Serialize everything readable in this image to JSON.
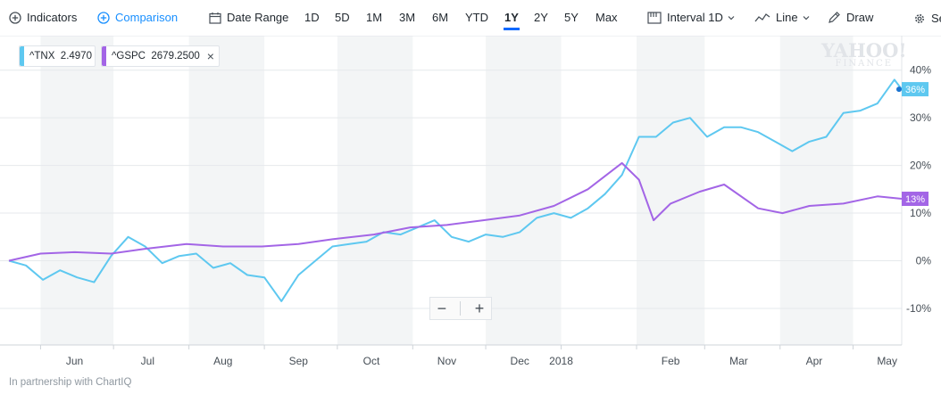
{
  "toolbar": {
    "indicators": "Indicators",
    "comparison": "Comparison",
    "date_range": "Date Range",
    "ranges": [
      "1D",
      "5D",
      "1M",
      "3M",
      "6M",
      "YTD",
      "1Y",
      "2Y",
      "5Y",
      "Max"
    ],
    "active_range": "1Y",
    "interval": "Interval",
    "interval_value": "1D",
    "chart_type": "Line",
    "draw": "Draw",
    "settings": "Se"
  },
  "legend": [
    {
      "symbol": "^TNX",
      "value": "2.4970",
      "color": "#5ec8f0"
    },
    {
      "symbol": "^GSPC",
      "value": "2679.2500",
      "color": "#a365e6"
    }
  ],
  "watermark": {
    "line1": "YAHOO!",
    "line2": "FINANCE"
  },
  "zoom": {
    "minus": "−",
    "plus": "+"
  },
  "footer": "In partnership with ChartIQ",
  "chart_data": {
    "type": "line",
    "x_tick_labels": [
      "Jun",
      "Jul",
      "Aug",
      "Sep",
      "Oct",
      "Nov",
      "Dec",
      "2018",
      "Feb",
      "Mar",
      "Apr",
      "May"
    ],
    "y_tick_labels": [
      "40%",
      "30%",
      "20%",
      "10%",
      "0%",
      "-10%"
    ],
    "y_ticks": [
      40,
      30,
      20,
      10,
      0,
      -10
    ],
    "ylim": [
      -18,
      46
    ],
    "xlim": [
      "2017-05-19",
      "2018-05-21"
    ],
    "grid": true,
    "series": [
      {
        "name": "^TNX",
        "color": "#5ec8f0",
        "end_label": "36%",
        "points": [
          [
            "2017-05-19",
            0
          ],
          [
            "2017-05-26",
            -1
          ],
          [
            "2017-06-02",
            -4
          ],
          [
            "2017-06-09",
            -2
          ],
          [
            "2017-06-16",
            -3.5
          ],
          [
            "2017-06-23",
            -4.5
          ],
          [
            "2017-06-30",
            1
          ],
          [
            "2017-07-07",
            5
          ],
          [
            "2017-07-14",
            3
          ],
          [
            "2017-07-21",
            -0.5
          ],
          [
            "2017-07-28",
            1
          ],
          [
            "2017-08-04",
            1.5
          ],
          [
            "2017-08-11",
            -1.5
          ],
          [
            "2017-08-18",
            -0.5
          ],
          [
            "2017-08-25",
            -3
          ],
          [
            "2017-09-01",
            -3.5
          ],
          [
            "2017-09-08",
            -8.5
          ],
          [
            "2017-09-15",
            -3
          ],
          [
            "2017-09-22",
            0
          ],
          [
            "2017-09-29",
            3
          ],
          [
            "2017-10-06",
            3.5
          ],
          [
            "2017-10-13",
            4
          ],
          [
            "2017-10-20",
            6
          ],
          [
            "2017-10-27",
            5.5
          ],
          [
            "2017-11-03",
            7
          ],
          [
            "2017-11-10",
            8.5
          ],
          [
            "2017-11-17",
            5
          ],
          [
            "2017-11-24",
            4
          ],
          [
            "2017-12-01",
            5.5
          ],
          [
            "2017-12-08",
            5
          ],
          [
            "2017-12-15",
            6
          ],
          [
            "2017-12-22",
            9
          ],
          [
            "2017-12-29",
            10
          ],
          [
            "2018-01-05",
            9
          ],
          [
            "2018-01-12",
            11
          ],
          [
            "2018-01-19",
            14
          ],
          [
            "2018-01-26",
            18
          ],
          [
            "2018-02-02",
            26
          ],
          [
            "2018-02-09",
            26
          ],
          [
            "2018-02-16",
            29
          ],
          [
            "2018-02-23",
            30
          ],
          [
            "2018-03-02",
            26
          ],
          [
            "2018-03-09",
            28
          ],
          [
            "2018-03-16",
            28
          ],
          [
            "2018-03-23",
            27
          ],
          [
            "2018-03-30",
            25
          ],
          [
            "2018-04-06",
            23
          ],
          [
            "2018-04-13",
            25
          ],
          [
            "2018-04-20",
            26
          ],
          [
            "2018-04-27",
            31
          ],
          [
            "2018-05-04",
            31.5
          ],
          [
            "2018-05-11",
            33
          ],
          [
            "2018-05-18",
            38
          ],
          [
            "2018-05-21",
            36
          ]
        ]
      },
      {
        "name": "^GSPC",
        "color": "#a365e6",
        "end_label": "13%",
        "points": [
          [
            "2017-05-19",
            0
          ],
          [
            "2017-06-01",
            1.5
          ],
          [
            "2017-06-15",
            1.8
          ],
          [
            "2017-06-30",
            1.5
          ],
          [
            "2017-07-14",
            2.5
          ],
          [
            "2017-07-31",
            3.5
          ],
          [
            "2017-08-15",
            3
          ],
          [
            "2017-08-31",
            3
          ],
          [
            "2017-09-15",
            3.5
          ],
          [
            "2017-09-29",
            4.5
          ],
          [
            "2017-10-16",
            5.5
          ],
          [
            "2017-10-31",
            7
          ],
          [
            "2017-11-15",
            7.5
          ],
          [
            "2017-11-30",
            8.5
          ],
          [
            "2017-12-15",
            9.5
          ],
          [
            "2017-12-29",
            11.5
          ],
          [
            "2018-01-12",
            15
          ],
          [
            "2018-01-26",
            20.5
          ],
          [
            "2018-02-02",
            17
          ],
          [
            "2018-02-08",
            8.5
          ],
          [
            "2018-02-15",
            12
          ],
          [
            "2018-02-27",
            14.5
          ],
          [
            "2018-03-09",
            16
          ],
          [
            "2018-03-23",
            11
          ],
          [
            "2018-04-02",
            10
          ],
          [
            "2018-04-13",
            11.5
          ],
          [
            "2018-04-27",
            12
          ],
          [
            "2018-05-11",
            13.5
          ],
          [
            "2018-05-21",
            13
          ]
        ]
      }
    ]
  }
}
